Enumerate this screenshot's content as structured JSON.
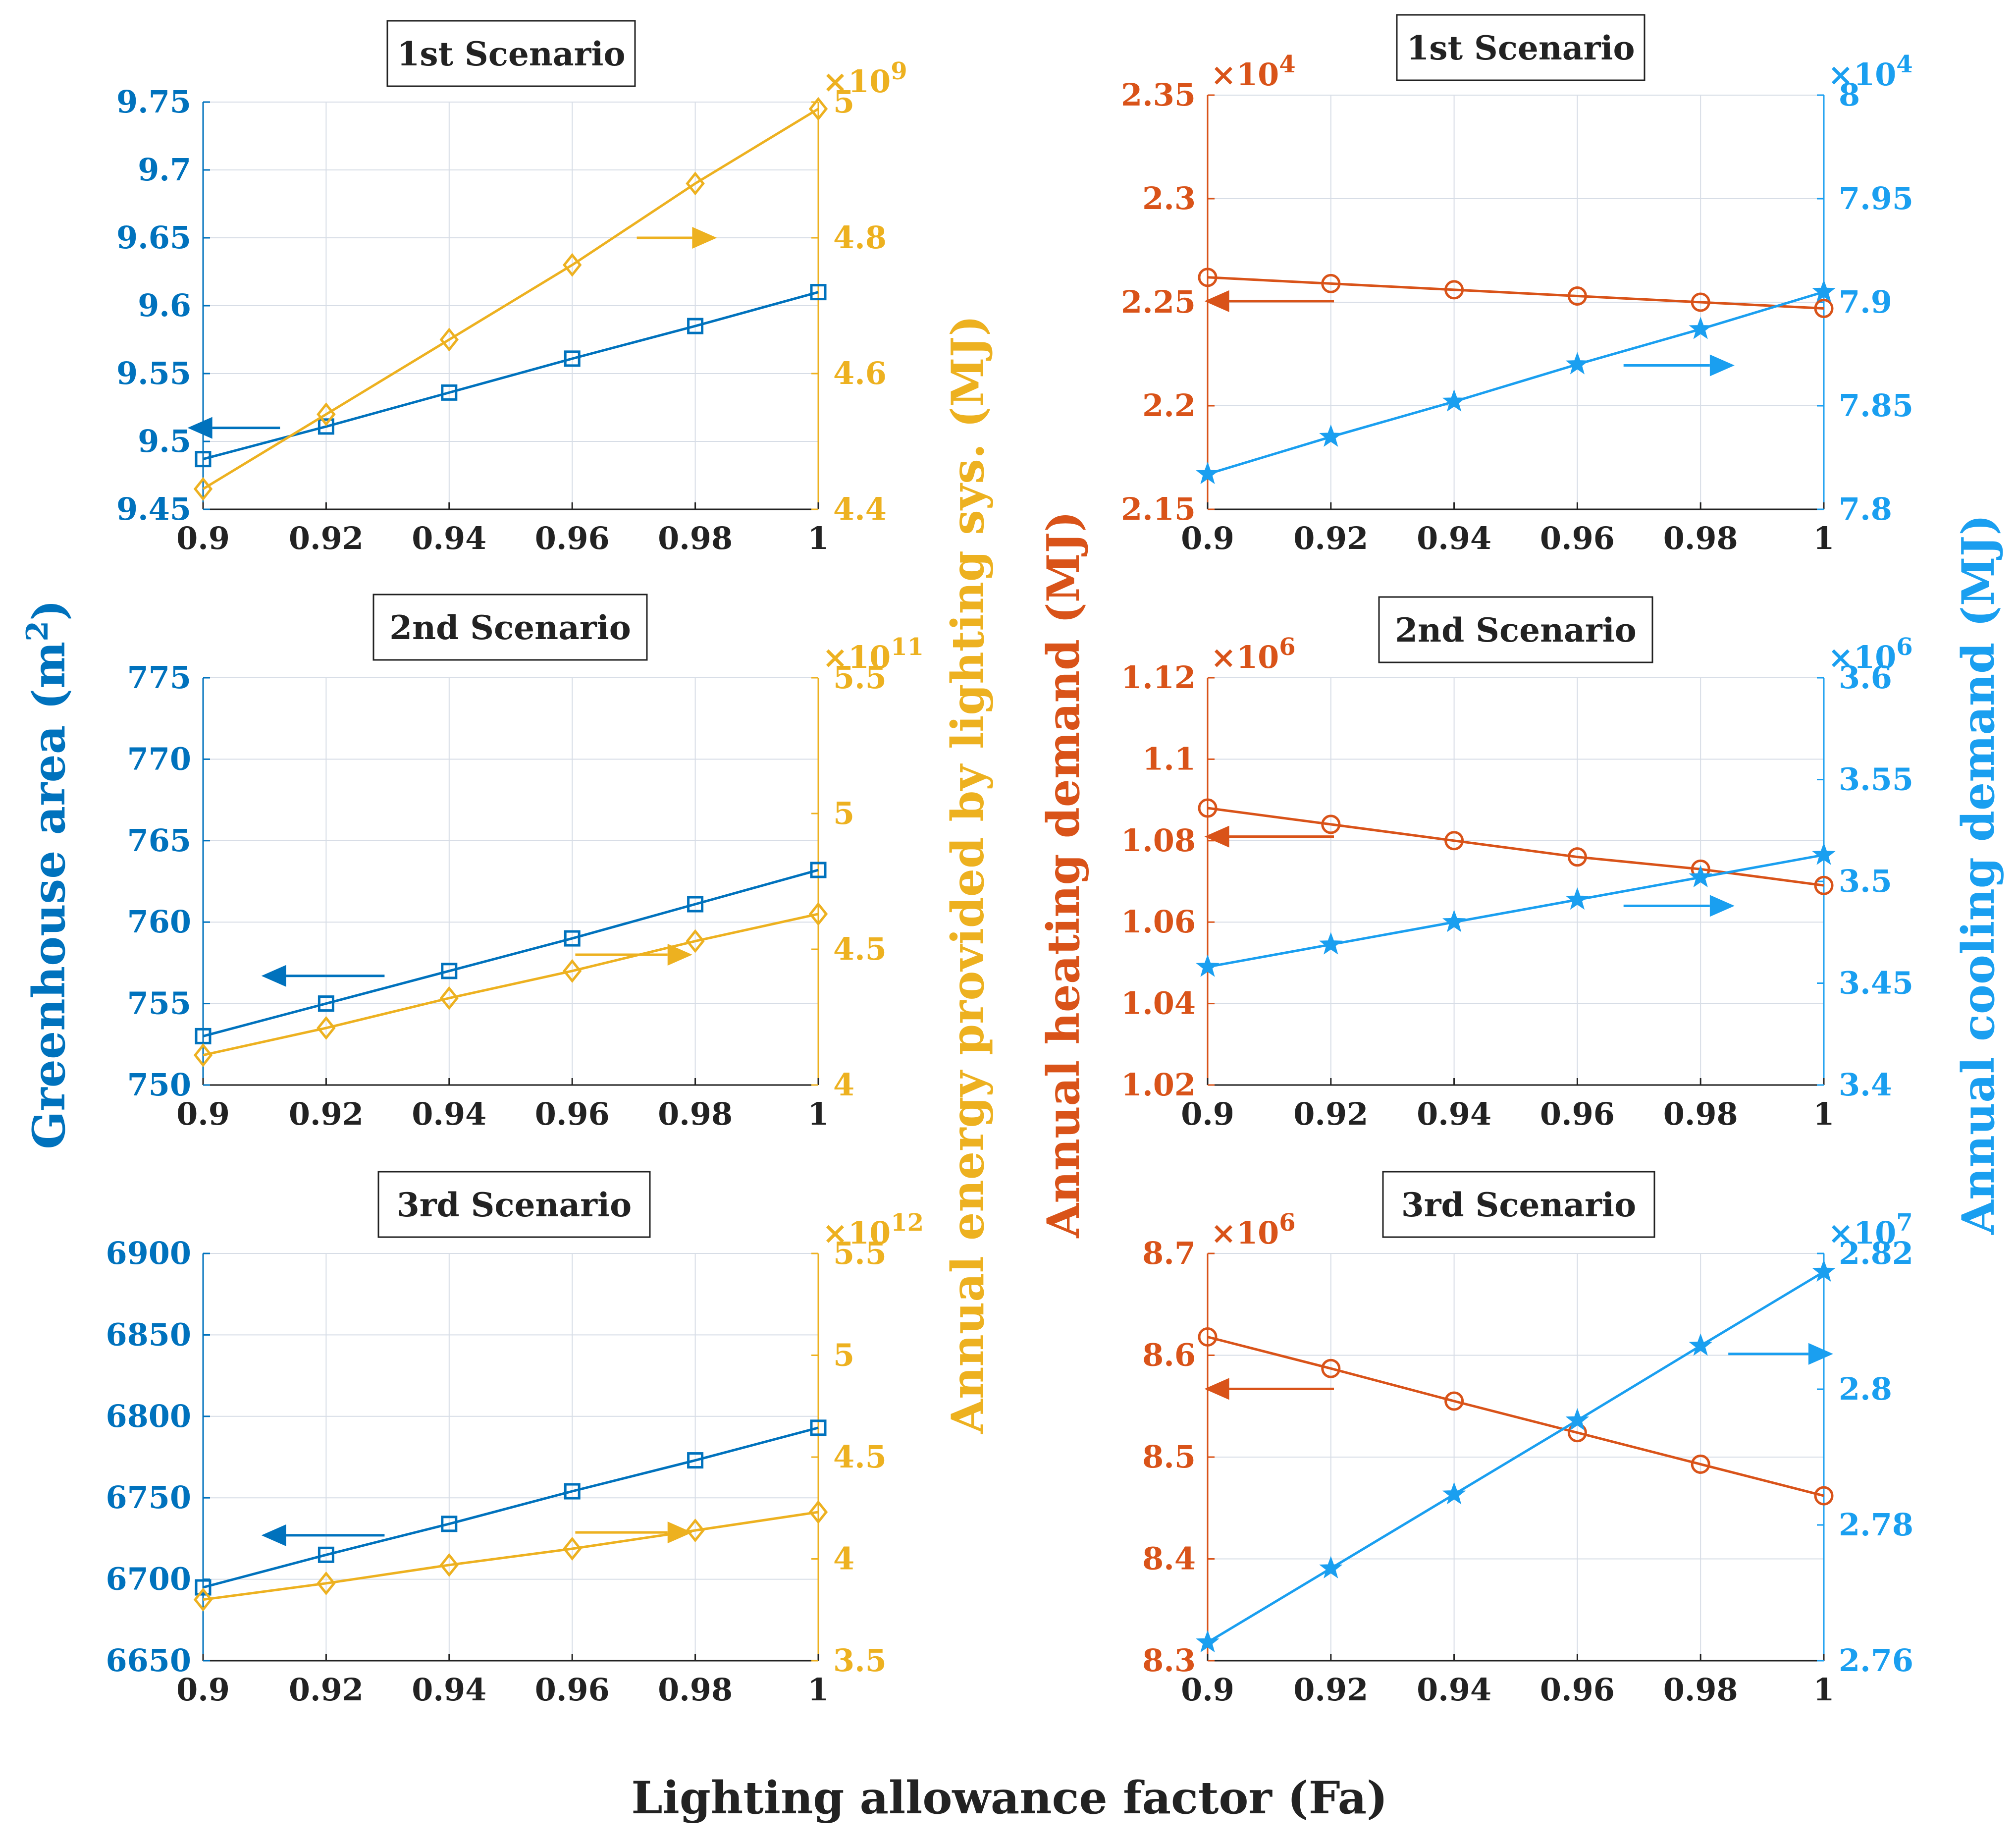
{
  "colors": {
    "blue": "#0072BD",
    "yellow": "#EDB120",
    "orange": "#D95319",
    "cyan": "#1A9FF0",
    "grid": "#d7dde6",
    "black": "#222222"
  },
  "figure": {
    "x_label": "Lighting allowance factor (Fa)",
    "left_ylabel": "Greenhouse area (m",
    "left_ylabel_sup": "2",
    "left_ylabel_end": ")",
    "energy_ylabel": "Annual energy provided by lighting sys. (MJ)",
    "heating_ylabel": "Annual heating demand (MJ)",
    "cooling_ylabel": "Annual cooling demand (MJ)"
  },
  "chart_data": [
    {
      "type": "line",
      "title": "1st Scenario",
      "x": [
        0.9,
        0.92,
        0.94,
        0.96,
        0.98,
        1
      ],
      "x_ticks": [
        "0.9",
        "0.92",
        "0.94",
        "0.96",
        "0.98",
        "1"
      ],
      "xlim": [
        0.9,
        1
      ],
      "grid": true,
      "y_left": {
        "lim": [
          9.45,
          9.75
        ],
        "ticks": [
          9.45,
          9.5,
          9.55,
          9.6,
          9.65,
          9.7,
          9.75
        ],
        "tick_labels": [
          "9.45",
          "9.5",
          "9.55",
          "9.6",
          "9.65",
          "9.7",
          "9.75"
        ],
        "exponent_base": "",
        "exponent_power": "",
        "color": "#0072BD"
      },
      "y_right": {
        "lim": [
          4.4,
          5.0
        ],
        "ticks": [
          4.4,
          4.6,
          4.8,
          5.0
        ],
        "tick_labels": [
          "4.4",
          "4.6",
          "4.8",
          "5"
        ],
        "exponent_base": "×10",
        "exponent_power": "9",
        "color": "#EDB120"
      },
      "series": [
        {
          "axis": "left",
          "marker": "square",
          "color": "#0072BD",
          "values": [
            9.487,
            9.511,
            9.536,
            9.561,
            9.585,
            9.61
          ]
        },
        {
          "axis": "right",
          "marker": "diamond",
          "color": "#EDB120",
          "values": [
            4.43,
            4.54,
            4.65,
            4.76,
            4.88,
            4.99
          ]
        }
      ],
      "arrows": [
        {
          "direction": "left",
          "color": "#0072BD",
          "x": [
            0.9125,
            0.9015
          ],
          "y_axis": "left",
          "y": 9.51
        },
        {
          "direction": "right",
          "color": "#EDB120",
          "x": [
            0.9705,
            0.9795
          ],
          "y_axis": "right",
          "y": 4.8
        }
      ]
    },
    {
      "type": "line",
      "title": "2nd Scenario",
      "x": [
        0.9,
        0.92,
        0.94,
        0.96,
        0.98,
        1
      ],
      "x_ticks": [
        "0.9",
        "0.92",
        "0.94",
        "0.96",
        "0.98",
        "1"
      ],
      "xlim": [
        0.9,
        1
      ],
      "grid": true,
      "y_left": {
        "lim": [
          750,
          775
        ],
        "ticks": [
          750,
          755,
          760,
          765,
          770,
          775
        ],
        "tick_labels": [
          "750",
          "755",
          "760",
          "765",
          "770",
          "775"
        ],
        "exponent_base": "",
        "exponent_power": "",
        "color": "#0072BD"
      },
      "y_right": {
        "lim": [
          4.0,
          5.5
        ],
        "ticks": [
          4.0,
          4.5,
          5.0,
          5.5
        ],
        "tick_labels": [
          "4",
          "4.5",
          "5",
          "5.5"
        ],
        "exponent_base": "×10",
        "exponent_power": "11",
        "color": "#EDB120"
      },
      "series": [
        {
          "axis": "left",
          "marker": "square",
          "color": "#0072BD",
          "values": [
            753.0,
            755.0,
            757.0,
            759.0,
            761.1,
            763.2
          ]
        },
        {
          "axis": "right",
          "marker": "diamond",
          "color": "#EDB120",
          "values": [
            4.11,
            4.21,
            4.32,
            4.42,
            4.53,
            4.63
          ]
        }
      ],
      "arrows": [
        {
          "direction": "left",
          "color": "#0072BD",
          "x": [
            0.9295,
            0.9135
          ],
          "y_axis": "left",
          "y": 756.7
        },
        {
          "direction": "right",
          "color": "#EDB120",
          "x": [
            0.9605,
            0.9755
          ],
          "y_axis": "right",
          "y": 4.48
        }
      ]
    },
    {
      "type": "line",
      "title": "3rd Scenario",
      "x": [
        0.9,
        0.92,
        0.94,
        0.96,
        0.98,
        1
      ],
      "x_ticks": [
        "0.9",
        "0.92",
        "0.94",
        "0.96",
        "0.98",
        "1"
      ],
      "xlim": [
        0.9,
        1
      ],
      "grid": true,
      "y_left": {
        "lim": [
          6650,
          6900
        ],
        "ticks": [
          6650,
          6700,
          6750,
          6800,
          6850,
          6900
        ],
        "tick_labels": [
          "6650",
          "6700",
          "6750",
          "6800",
          "6850",
          "6900"
        ],
        "exponent_base": "",
        "exponent_power": "",
        "color": "#0072BD"
      },
      "y_right": {
        "lim": [
          3.5,
          5.5
        ],
        "ticks": [
          3.5,
          4.0,
          4.5,
          5.0,
          5.5
        ],
        "tick_labels": [
          "3.5",
          "4",
          "4.5",
          "5",
          "5.5"
        ],
        "exponent_base": "×10",
        "exponent_power": "12",
        "color": "#EDB120"
      },
      "series": [
        {
          "axis": "left",
          "marker": "square",
          "color": "#0072BD",
          "values": [
            6695,
            6715,
            6734,
            6754,
            6773,
            6793
          ]
        },
        {
          "axis": "right",
          "marker": "diamond",
          "color": "#EDB120",
          "values": [
            3.8,
            3.88,
            3.97,
            4.05,
            4.14,
            4.23
          ]
        }
      ],
      "arrows": [
        {
          "direction": "left",
          "color": "#0072BD",
          "x": [
            0.9295,
            0.9135
          ],
          "y_axis": "left",
          "y": 6727
        },
        {
          "direction": "right",
          "color": "#EDB120",
          "x": [
            0.9605,
            0.9755
          ],
          "y_axis": "right",
          "y": 4.13
        }
      ]
    },
    {
      "type": "line",
      "title": "1st Scenario",
      "x": [
        0.9,
        0.92,
        0.94,
        0.96,
        0.98,
        1
      ],
      "x_ticks": [
        "0.9",
        "0.92",
        "0.94",
        "0.96",
        "0.98",
        "1"
      ],
      "xlim": [
        0.9,
        1
      ],
      "grid": true,
      "y_left": {
        "lim": [
          2.15,
          2.35
        ],
        "ticks": [
          2.15,
          2.2,
          2.25,
          2.3,
          2.35
        ],
        "tick_labels": [
          "2.15",
          "2.2",
          "2.25",
          "2.3",
          "2.35"
        ],
        "exponent_base": "×10",
        "exponent_power": "4",
        "color": "#D95319"
      },
      "y_right": {
        "lim": [
          7.8,
          8.0
        ],
        "ticks": [
          7.8,
          7.85,
          7.9,
          7.95,
          8.0
        ],
        "tick_labels": [
          "7.8",
          "7.85",
          "7.9",
          "7.95",
          "8"
        ],
        "exponent_base": "×10",
        "exponent_power": "4",
        "color": "#1A9FF0"
      },
      "series": [
        {
          "axis": "left",
          "marker": "circle",
          "color": "#D95319",
          "values": [
            2.262,
            2.259,
            2.256,
            2.253,
            2.25,
            2.247
          ]
        },
        {
          "axis": "right",
          "marker": "star",
          "color": "#1A9FF0",
          "values": [
            7.817,
            7.835,
            7.852,
            7.87,
            7.887,
            7.905
          ]
        }
      ],
      "arrows": [
        {
          "direction": "left",
          "color": "#D95319",
          "x": [
            0.9205,
            0.9035
          ],
          "y_axis": "left",
          "y": 2.2505
        },
        {
          "direction": "right",
          "color": "#1A9FF0",
          "x": [
            0.9675,
            0.9815
          ],
          "y_axis": "right",
          "y": 7.8695
        }
      ]
    },
    {
      "type": "line",
      "title": "2nd Scenario",
      "x": [
        0.9,
        0.92,
        0.94,
        0.96,
        0.98,
        1
      ],
      "x_ticks": [
        "0.9",
        "0.92",
        "0.94",
        "0.96",
        "0.98",
        "1"
      ],
      "xlim": [
        0.9,
        1
      ],
      "grid": true,
      "y_left": {
        "lim": [
          1.02,
          1.12
        ],
        "ticks": [
          1.02,
          1.04,
          1.06,
          1.08,
          1.1,
          1.12
        ],
        "tick_labels": [
          "1.02",
          "1.04",
          "1.06",
          "1.08",
          "1.1",
          "1.12"
        ],
        "exponent_base": "×10",
        "exponent_power": "6",
        "color": "#D95319"
      },
      "y_right": {
        "lim": [
          3.4,
          3.6
        ],
        "ticks": [
          3.4,
          3.45,
          3.5,
          3.55,
          3.6
        ],
        "tick_labels": [
          "3.4",
          "3.45",
          "3.5",
          "3.55",
          "3.6"
        ],
        "exponent_base": "×10",
        "exponent_power": "6",
        "color": "#1A9FF0"
      },
      "series": [
        {
          "axis": "left",
          "marker": "circle",
          "color": "#D95319",
          "values": [
            1.088,
            1.084,
            1.08,
            1.076,
            1.073,
            1.069
          ]
        },
        {
          "axis": "right",
          "marker": "star",
          "color": "#1A9FF0",
          "values": [
            3.458,
            3.469,
            3.48,
            3.491,
            3.502,
            3.513
          ]
        }
      ],
      "arrows": [
        {
          "direction": "left",
          "color": "#D95319",
          "x": [
            0.9205,
            0.9035
          ],
          "y_axis": "left",
          "y": 1.081
        },
        {
          "direction": "right",
          "color": "#1A9FF0",
          "x": [
            0.9675,
            0.9815
          ],
          "y_axis": "right",
          "y": 3.488
        }
      ]
    },
    {
      "type": "line",
      "title": "3rd Scenario",
      "x": [
        0.9,
        0.92,
        0.94,
        0.96,
        0.98,
        1
      ],
      "x_ticks": [
        "0.9",
        "0.92",
        "0.94",
        "0.96",
        "0.98",
        "1"
      ],
      "xlim": [
        0.9,
        1
      ],
      "grid": true,
      "y_left": {
        "lim": [
          8.3,
          8.7
        ],
        "ticks": [
          8.3,
          8.4,
          8.5,
          8.6,
          8.7
        ],
        "tick_labels": [
          "8.3",
          "8.4",
          "8.5",
          "8.6",
          "8.7"
        ],
        "exponent_base": "×10",
        "exponent_power": "6",
        "color": "#D95319"
      },
      "y_right": {
        "lim": [
          2.76,
          2.82
        ],
        "ticks": [
          2.76,
          2.78,
          2.8,
          2.82
        ],
        "tick_labels": [
          "2.76",
          "2.78",
          "2.8",
          "2.82"
        ],
        "exponent_base": "×10",
        "exponent_power": "7",
        "color": "#1A9FF0"
      },
      "series": [
        {
          "axis": "left",
          "marker": "circle",
          "color": "#D95319",
          "values": [
            8.618,
            8.587,
            8.555,
            8.524,
            8.493,
            8.462
          ]
        },
        {
          "axis": "right",
          "marker": "star",
          "color": "#1A9FF0",
          "values": [
            2.7627,
            2.7736,
            2.7845,
            2.7954,
            2.8064,
            2.8173
          ]
        }
      ],
      "arrows": [
        {
          "direction": "left",
          "color": "#D95319",
          "x": [
            0.9205,
            0.9035
          ],
          "y_axis": "left",
          "y": 8.567
        },
        {
          "direction": "right",
          "color": "#1A9FF0",
          "x": [
            0.9845,
            0.9975
          ],
          "y_axis": "right",
          "y": 2.8052
        }
      ]
    }
  ]
}
